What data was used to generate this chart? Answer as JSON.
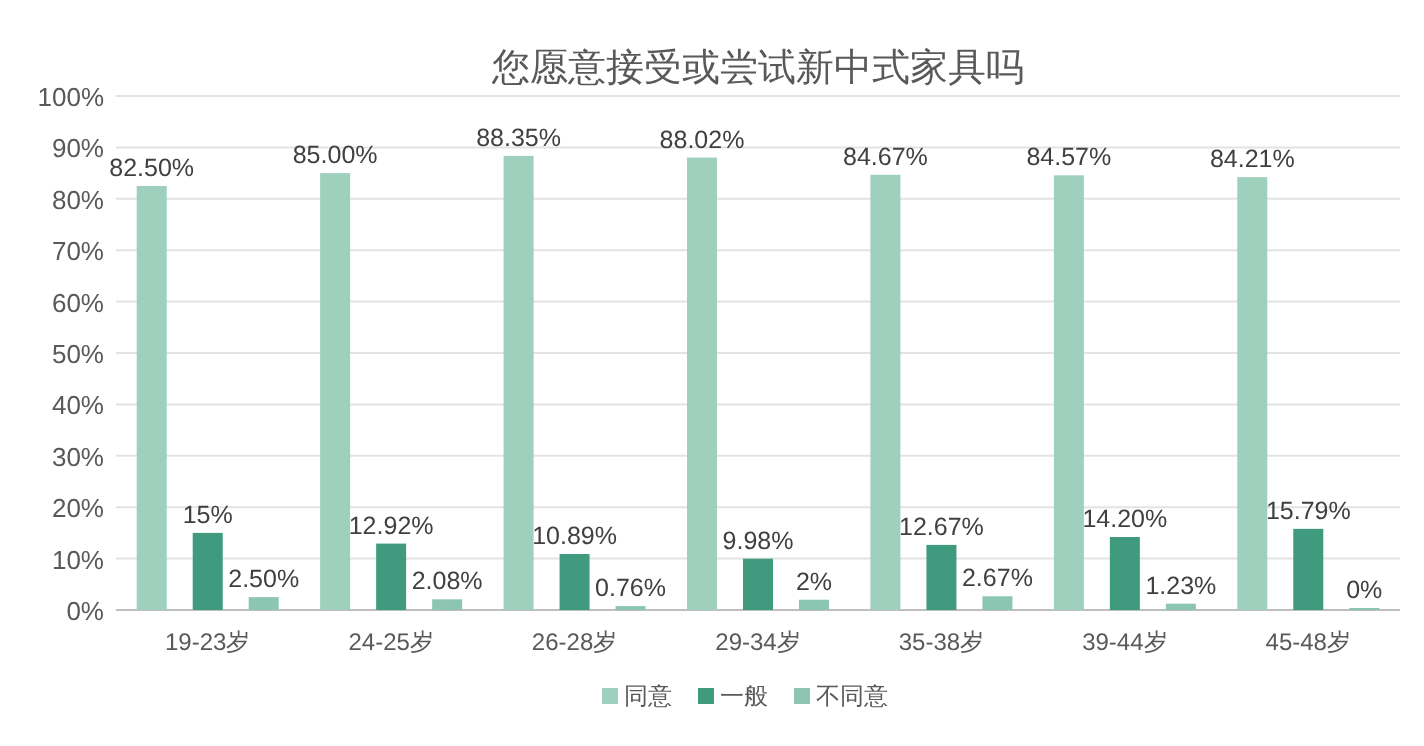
{
  "chart_data": {
    "type": "bar",
    "title": "您愿意接受或尝试新中式家具吗",
    "categories": [
      "19-23岁",
      "24-25岁",
      "26-28岁",
      "29-34岁",
      "35-38岁",
      "39-44岁",
      "45-48岁"
    ],
    "series": [
      {
        "name": "同意",
        "color": "#9fcfbd",
        "values": [
          82.5,
          85.0,
          88.35,
          88.02,
          84.67,
          84.57,
          84.21
        ],
        "value_labels": [
          "82.50%",
          "85.00%",
          "88.35%",
          "88.02%",
          "84.67%",
          "84.57%",
          "84.21%"
        ]
      },
      {
        "name": "一般",
        "color": "#3f9a7e",
        "values": [
          15,
          12.92,
          10.89,
          9.98,
          12.67,
          14.2,
          15.79
        ],
        "value_labels": [
          "15%",
          "12.92%",
          "10.89%",
          "9.98%",
          "12.67%",
          "14.20%",
          "15.79%"
        ]
      },
      {
        "name": "不同意",
        "color": "#8cc6b2",
        "values": [
          2.5,
          2.08,
          0.76,
          2,
          2.67,
          1.23,
          0
        ],
        "value_labels": [
          "2.50%",
          "2.08%",
          "0.76%",
          "2%",
          "2.67%",
          "1.23%",
          "0%"
        ]
      }
    ],
    "ylim": [
      0,
      100
    ],
    "yticks": [
      {
        "value": 0,
        "label": "0%"
      },
      {
        "value": 10,
        "label": "10%"
      },
      {
        "value": 20,
        "label": "20%"
      },
      {
        "value": 30,
        "label": "30%"
      },
      {
        "value": 40,
        "label": "40%"
      },
      {
        "value": 50,
        "label": "50%"
      },
      {
        "value": 60,
        "label": "60%"
      },
      {
        "value": 70,
        "label": "70%"
      },
      {
        "value": 80,
        "label": "80%"
      },
      {
        "value": 90,
        "label": "90%"
      },
      {
        "value": 100,
        "label": "100%"
      }
    ],
    "grid": "y",
    "legend": "bottom"
  }
}
